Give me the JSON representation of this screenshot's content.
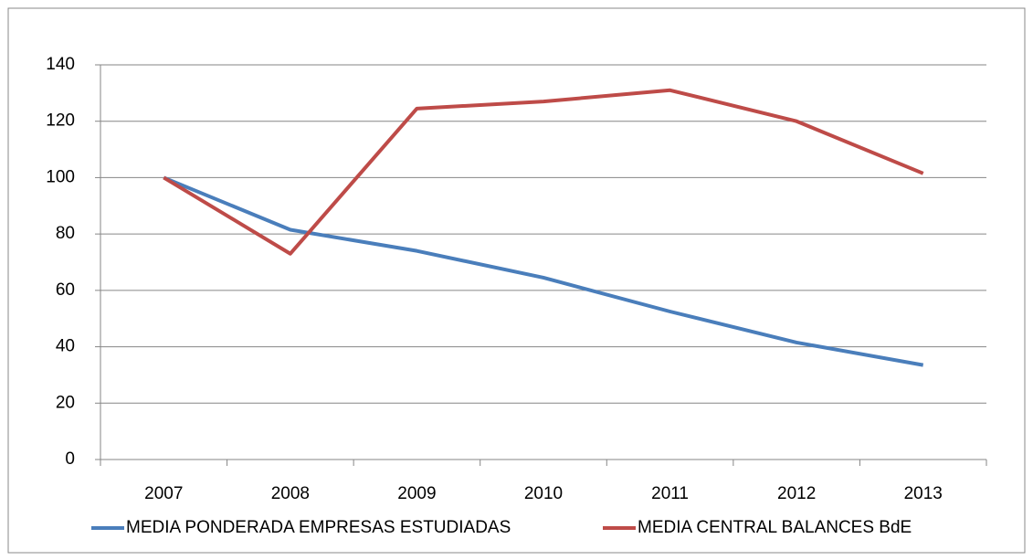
{
  "chart_data": {
    "type": "line",
    "categories": [
      "2007",
      "2008",
      "2009",
      "2010",
      "2011",
      "2012",
      "2013"
    ],
    "series": [
      {
        "name": "MEDIA PONDERADA EMPRESAS ESTUDIADAS",
        "color": "#4a7ebb",
        "values": [
          100,
          81.5,
          74,
          64.5,
          52.5,
          41.5,
          33.5
        ]
      },
      {
        "name": "MEDIA CENTRAL BALANCES BdE",
        "color": "#be4b48",
        "values": [
          100,
          73,
          124.5,
          127,
          131,
          120,
          101.5
        ]
      }
    ],
    "ylim": [
      0,
      140
    ],
    "yticks": [
      0,
      20,
      40,
      60,
      80,
      100,
      120,
      140
    ],
    "grid": true,
    "legend": "bottom"
  }
}
